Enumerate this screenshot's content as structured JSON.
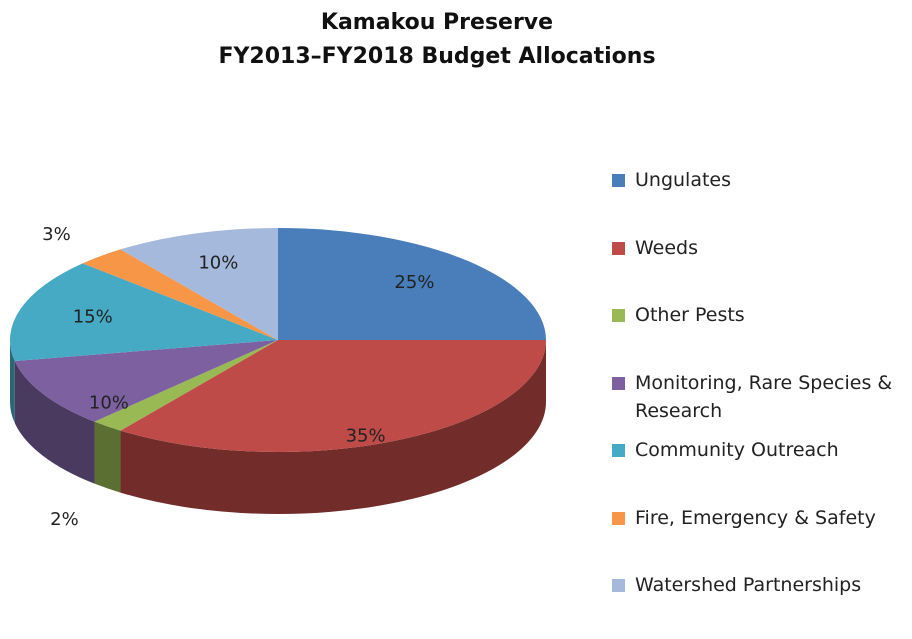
{
  "chart_data": {
    "type": "pie",
    "title": "Kamakou Preserve",
    "subtitle": "FY2013–FY2018 Budget Allocations",
    "categories": [
      "Ungulates",
      "Weeds",
      "Other Pests",
      "Monitoring, Rare Species & Research",
      "Community Outreach",
      "Fire, Emergency & Safety",
      "Watershed Partnerships"
    ],
    "values": [
      25,
      35,
      2,
      10,
      15,
      3,
      10
    ],
    "value_labels": [
      "25%",
      "35%",
      "2%",
      "10%",
      "15%",
      "3%",
      "10%"
    ],
    "colors": [
      "#4a7ebb",
      "#be4b48",
      "#98b954",
      "#7d60a0",
      "#46aac5",
      "#f79646",
      "#a5b9dd"
    ],
    "legend": "right"
  }
}
